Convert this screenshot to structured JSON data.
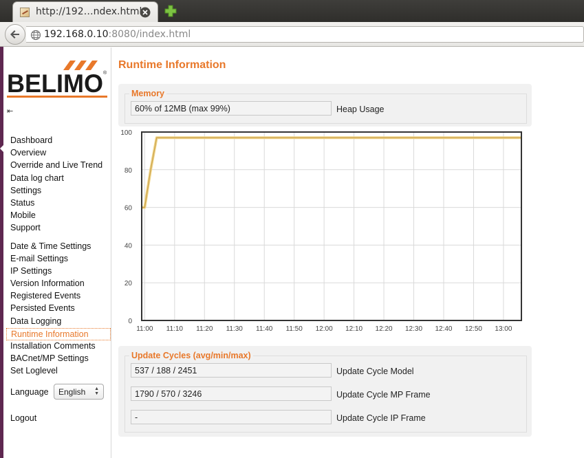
{
  "browser": {
    "tab_title": "http://192…ndex.html",
    "url_host": "192.168.0.10",
    "url_rest": ":8080/index.html"
  },
  "sidebar": {
    "collapse_icon": "⇤",
    "items": [
      {
        "label": "Dashboard"
      },
      {
        "label": "Overview"
      },
      {
        "label": "Override and Live Trend"
      },
      {
        "label": "Data log chart"
      },
      {
        "label": "Settings"
      },
      {
        "label": "Status"
      },
      {
        "label": "Mobile"
      },
      {
        "label": "Support"
      },
      {
        "label": "Date & Time Settings"
      },
      {
        "label": "E-mail Settings"
      },
      {
        "label": "IP Settings"
      },
      {
        "label": "Version Information"
      },
      {
        "label": "Registered Events"
      },
      {
        "label": "Persisted Events"
      },
      {
        "label": "Data Logging"
      },
      {
        "label": "Runtime Information",
        "active": true
      },
      {
        "label": "Installation Comments"
      },
      {
        "label": "BACnet/MP Settings"
      },
      {
        "label": "Set Loglevel"
      }
    ],
    "language_label": "Language",
    "language_value": "English",
    "logout_label": "Logout"
  },
  "main": {
    "title": "Runtime Information",
    "memory": {
      "legend": "Memory",
      "value": "60% of 12MB (max 99%)",
      "label": "Heap Usage"
    },
    "update_cycles": {
      "legend": "Update Cycles (avg/min/max)",
      "rows": [
        {
          "value": "537 / 188 / 2451",
          "label": "Update Cycle Model"
        },
        {
          "value": "1790 / 570 / 3246",
          "label": "Update Cycle MP Frame"
        },
        {
          "value": "-",
          "label": "Update Cycle IP Frame"
        }
      ]
    }
  },
  "colors": {
    "accent": "#e8782a",
    "line_outer": "#f0d58a",
    "line_inner": "#c9a04a"
  },
  "chart_data": {
    "type": "line",
    "x_ticks": [
      "11:00",
      "11:10",
      "11:20",
      "11:30",
      "11:40",
      "11:50",
      "12:00",
      "12:10",
      "12:20",
      "12:30",
      "12:40",
      "12:50",
      "13:00"
    ],
    "y_ticks": [
      0,
      20,
      40,
      60,
      80,
      100
    ],
    "ylim": [
      0,
      100
    ],
    "xlim": [
      "10:59",
      "13:06"
    ],
    "grid": true,
    "series": [
      {
        "x": [
          "10:59",
          "11:00",
          "11:02",
          "11:04",
          "13:06"
        ],
        "values": [
          60,
          60,
          80,
          97,
          97
        ]
      }
    ]
  }
}
